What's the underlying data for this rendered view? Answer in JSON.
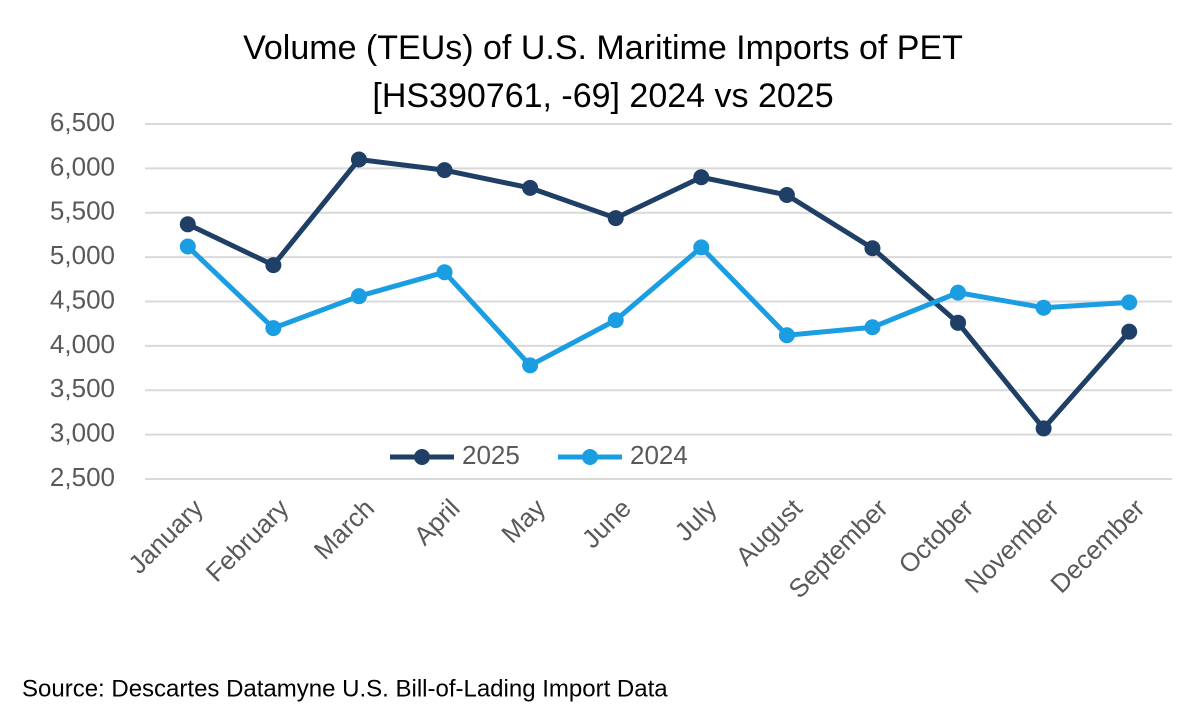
{
  "chart_data": {
    "type": "line",
    "title": "Volume (TEUs) of U.S. Maritime Imports of PET",
    "subtitle": "[HS390761, -69] 2024 vs 2025",
    "source": "Source: Descartes Datamyne U.S. Bill-of-Lading Import Data",
    "categories": [
      "January",
      "February",
      "March",
      "April",
      "May",
      "June",
      "July",
      "August",
      "September",
      "October",
      "November",
      "December"
    ],
    "series": [
      {
        "name": "2025",
        "color": "#1f3f66",
        "values": [
          5370,
          4910,
          6100,
          5980,
          5780,
          5440,
          5900,
          5700,
          5100,
          4260,
          3070,
          4160
        ]
      },
      {
        "name": "2024",
        "color": "#1b9de2",
        "values": [
          5120,
          4200,
          4560,
          4830,
          3780,
          4290,
          5110,
          4120,
          4210,
          4600,
          4430,
          4490
        ]
      }
    ],
    "ylim": [
      2500,
      6500
    ],
    "yticks": [
      {
        "value": 2500,
        "label": "2,500"
      },
      {
        "value": 3000,
        "label": "3,000"
      },
      {
        "value": 3500,
        "label": "3,500"
      },
      {
        "value": 4000,
        "label": "4,000"
      },
      {
        "value": 4500,
        "label": "4,500"
      },
      {
        "value": 5000,
        "label": "5,000"
      },
      {
        "value": 5500,
        "label": "5,500"
      },
      {
        "value": 6000,
        "label": "6,000"
      },
      {
        "value": 6500,
        "label": "6,500"
      }
    ],
    "grid": true,
    "legend": "inside-bottom-left"
  }
}
